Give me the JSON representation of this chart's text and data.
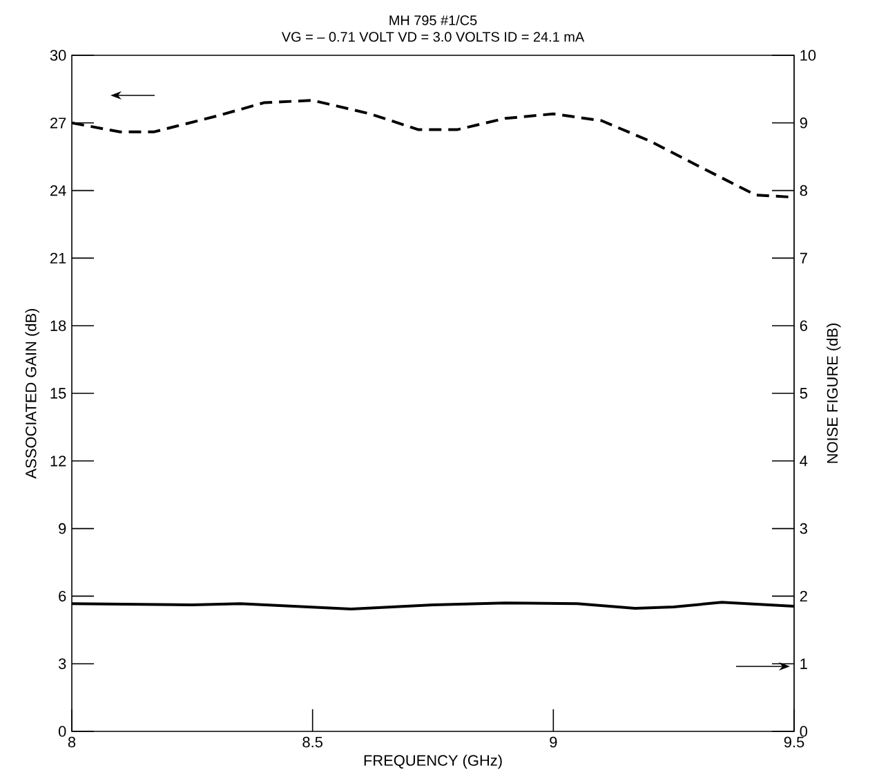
{
  "chart_data": {
    "type": "line",
    "title": "MH 795 #1/C5",
    "subtitle": "VG = – 0.71  VOLT VD = 3.0 VOLTS ID = 24.1 mA",
    "xlabel": "FREQUENCY (GHz)",
    "ylabel": "ASSOCIATED GAIN (dB)",
    "y2label": "NOISE FIGURE (dB)",
    "xlim": [
      8,
      9.5
    ],
    "xticks": [
      8,
      8.5,
      9,
      9.5
    ],
    "ylim": [
      0,
      30
    ],
    "yticks": [
      0,
      3,
      6,
      9,
      12,
      15,
      18,
      21,
      24,
      27,
      30
    ],
    "y2lim": [
      0,
      10
    ],
    "y2ticks": [
      0,
      1,
      2,
      3,
      4,
      5,
      6,
      7,
      8,
      9,
      10
    ],
    "grid": false,
    "series": [
      {
        "x": [
          8,
          8.1,
          8.17,
          8.3,
          8.4,
          8.5,
          8.62,
          8.72,
          8.8,
          8.9,
          9.0,
          9.1,
          9.2,
          9.3,
          9.42,
          9.5
        ],
        "values": [
          27,
          26.6,
          26.6,
          27.3,
          27.9,
          28.0,
          27.4,
          26.7,
          26.7,
          27.2,
          27.4,
          27.1,
          26.2,
          25.1,
          23.8,
          23.7
        ],
        "color": "#000000",
        "line_style": "dashed"
      },
      {
        "x": [
          8,
          8.25,
          8.35,
          8.58,
          8.75,
          8.9,
          9.05,
          9.17,
          9.25,
          9.35,
          9.5
        ],
        "values": [
          1.89,
          1.87,
          1.89,
          1.81,
          1.87,
          1.9,
          1.89,
          1.82,
          1.84,
          1.91,
          1.85
        ],
        "color": "#000000",
        "line_style": "solid",
        "axis": "y2"
      }
    ]
  }
}
